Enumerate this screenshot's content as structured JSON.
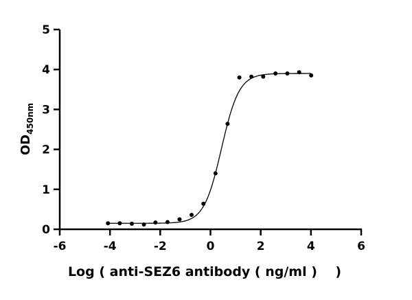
{
  "chart_data": {
    "type": "scatter",
    "title": "",
    "xlabel": "Log ( anti-SEZ6 antibody ( ng/ml )    )",
    "ylabel_main": "OD",
    "ylabel_sub": "450nm",
    "xlim": [
      -6,
      6
    ],
    "ylim": [
      0,
      5
    ],
    "xticks": [
      -6,
      -4,
      -2,
      0,
      2,
      4,
      6
    ],
    "yticks": [
      0,
      1,
      2,
      3,
      4,
      5
    ],
    "grid": false,
    "series": [
      {
        "x": [
          -4.08,
          -3.61,
          -3.13,
          -2.65,
          -2.19,
          -1.71,
          -1.23,
          -0.75,
          -0.28,
          0.2,
          0.68,
          1.15,
          1.63,
          2.1,
          2.59,
          3.06,
          3.53,
          4.01
        ],
        "y": [
          0.15,
          0.15,
          0.14,
          0.12,
          0.17,
          0.18,
          0.25,
          0.36,
          0.64,
          1.4,
          2.64,
          3.8,
          3.82,
          3.82,
          3.9,
          3.9,
          3.93,
          3.85
        ],
        "marker_color": "#000000"
      }
    ],
    "fit_curve": {
      "model": "4PL",
      "bottom": 0.15,
      "top": 3.9,
      "logEC50": 0.44,
      "hill_slope": 1.24,
      "x_range": [
        -4.08,
        4.01
      ],
      "color": "#000000"
    }
  }
}
